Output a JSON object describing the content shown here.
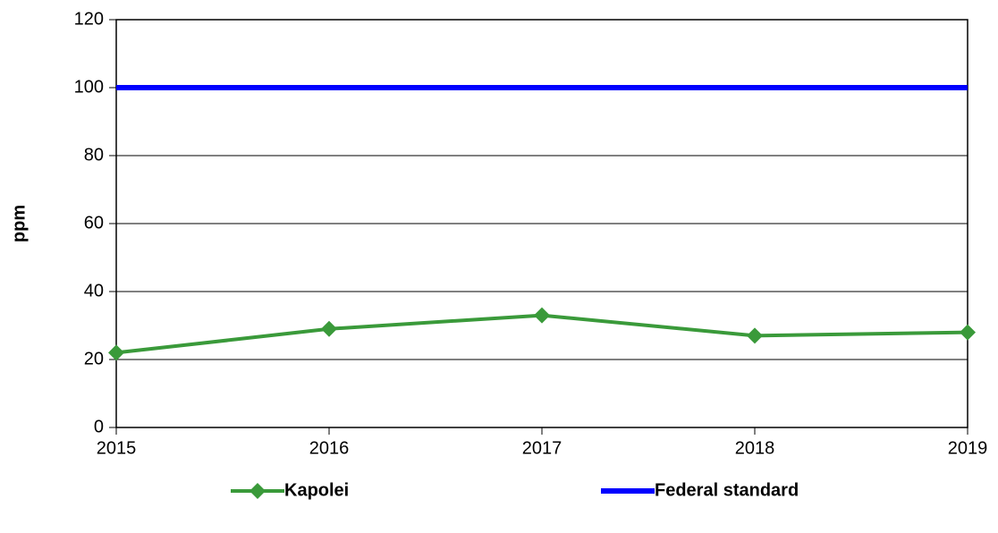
{
  "chart_data": {
    "type": "line",
    "y_label": "ppm",
    "x": [
      2015,
      2016,
      2017,
      2018,
      2019
    ],
    "series": [
      {
        "name": "Kapolei",
        "color": "#3a9a3a",
        "marker": "diamond",
        "values": [
          22,
          29,
          33,
          27,
          28
        ]
      },
      {
        "name": "Federal standard",
        "color": "#0000ff",
        "marker": "none",
        "values": [
          100,
          100,
          100,
          100,
          100
        ]
      }
    ],
    "xlim": [
      2015,
      2019
    ],
    "xticks": [
      2015,
      2016,
      2017,
      2018,
      2019
    ],
    "ylim": [
      0,
      120
    ],
    "yticks": [
      0,
      20,
      40,
      60,
      80,
      100,
      120
    ],
    "grid": true,
    "legend": "bottom"
  }
}
